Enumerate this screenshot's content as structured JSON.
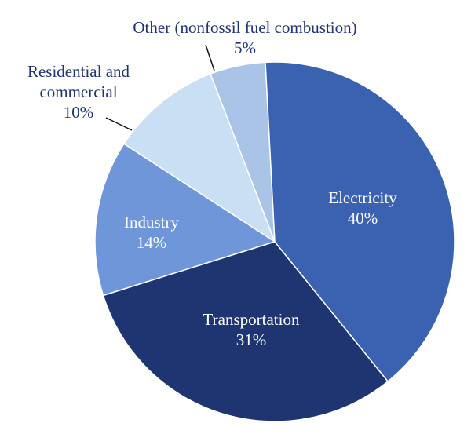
{
  "chart_data": {
    "type": "pie",
    "categories": [
      "Electricity",
      "Transportation",
      "Industry",
      "Residential and commercial",
      "Other (nonfossil fuel combustion)"
    ],
    "values": [
      40,
      31,
      14,
      10,
      5
    ],
    "value_labels": [
      "40%",
      "31%",
      "14%",
      "10%",
      "5%"
    ],
    "colors": [
      "#3a62b0",
      "#1f3571",
      "#6f96d9",
      "#c9e0f4",
      "#a9c4e6"
    ]
  }
}
